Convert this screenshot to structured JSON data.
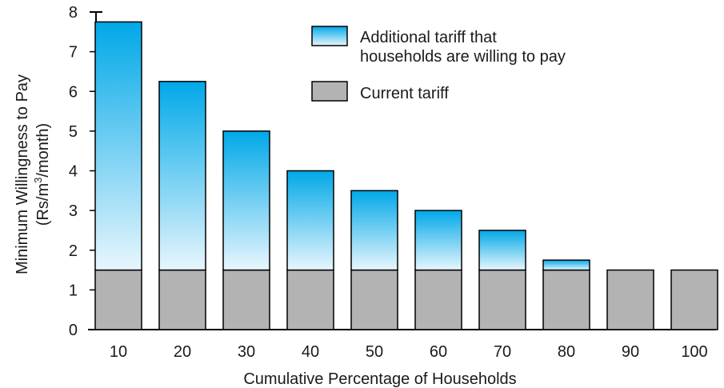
{
  "chart_data": {
    "type": "bar",
    "stacked": true,
    "categories": [
      "10",
      "20",
      "30",
      "40",
      "50",
      "60",
      "70",
      "80",
      "90",
      "100"
    ],
    "series": [
      {
        "name": "Current tariff",
        "values": [
          1.5,
          1.5,
          1.5,
          1.5,
          1.5,
          1.5,
          1.5,
          1.5,
          1.5,
          1.5
        ],
        "color": "#b3b3b3"
      },
      {
        "name_lines": [
          "Additional tariff that",
          "households are willing to pay"
        ],
        "values": [
          6.25,
          4.75,
          3.5,
          2.5,
          2.0,
          1.5,
          1.0,
          0.25,
          0,
          0
        ],
        "color_top": "#00a8e8",
        "color_bottom": "#e8f6fd"
      }
    ],
    "xlabel": "Cumulative Percentage of Households",
    "ylabel_line1": "Minimum Willingness to Pay",
    "ylabel_line2": [
      "(Rs/m",
      "3",
      "/month)"
    ],
    "ylim": [
      0,
      8
    ],
    "yticks": [
      "0",
      "1",
      "2",
      "3",
      "4",
      "5",
      "6",
      "7",
      "8"
    ],
    "grid": false,
    "legend_position": "top-right"
  }
}
